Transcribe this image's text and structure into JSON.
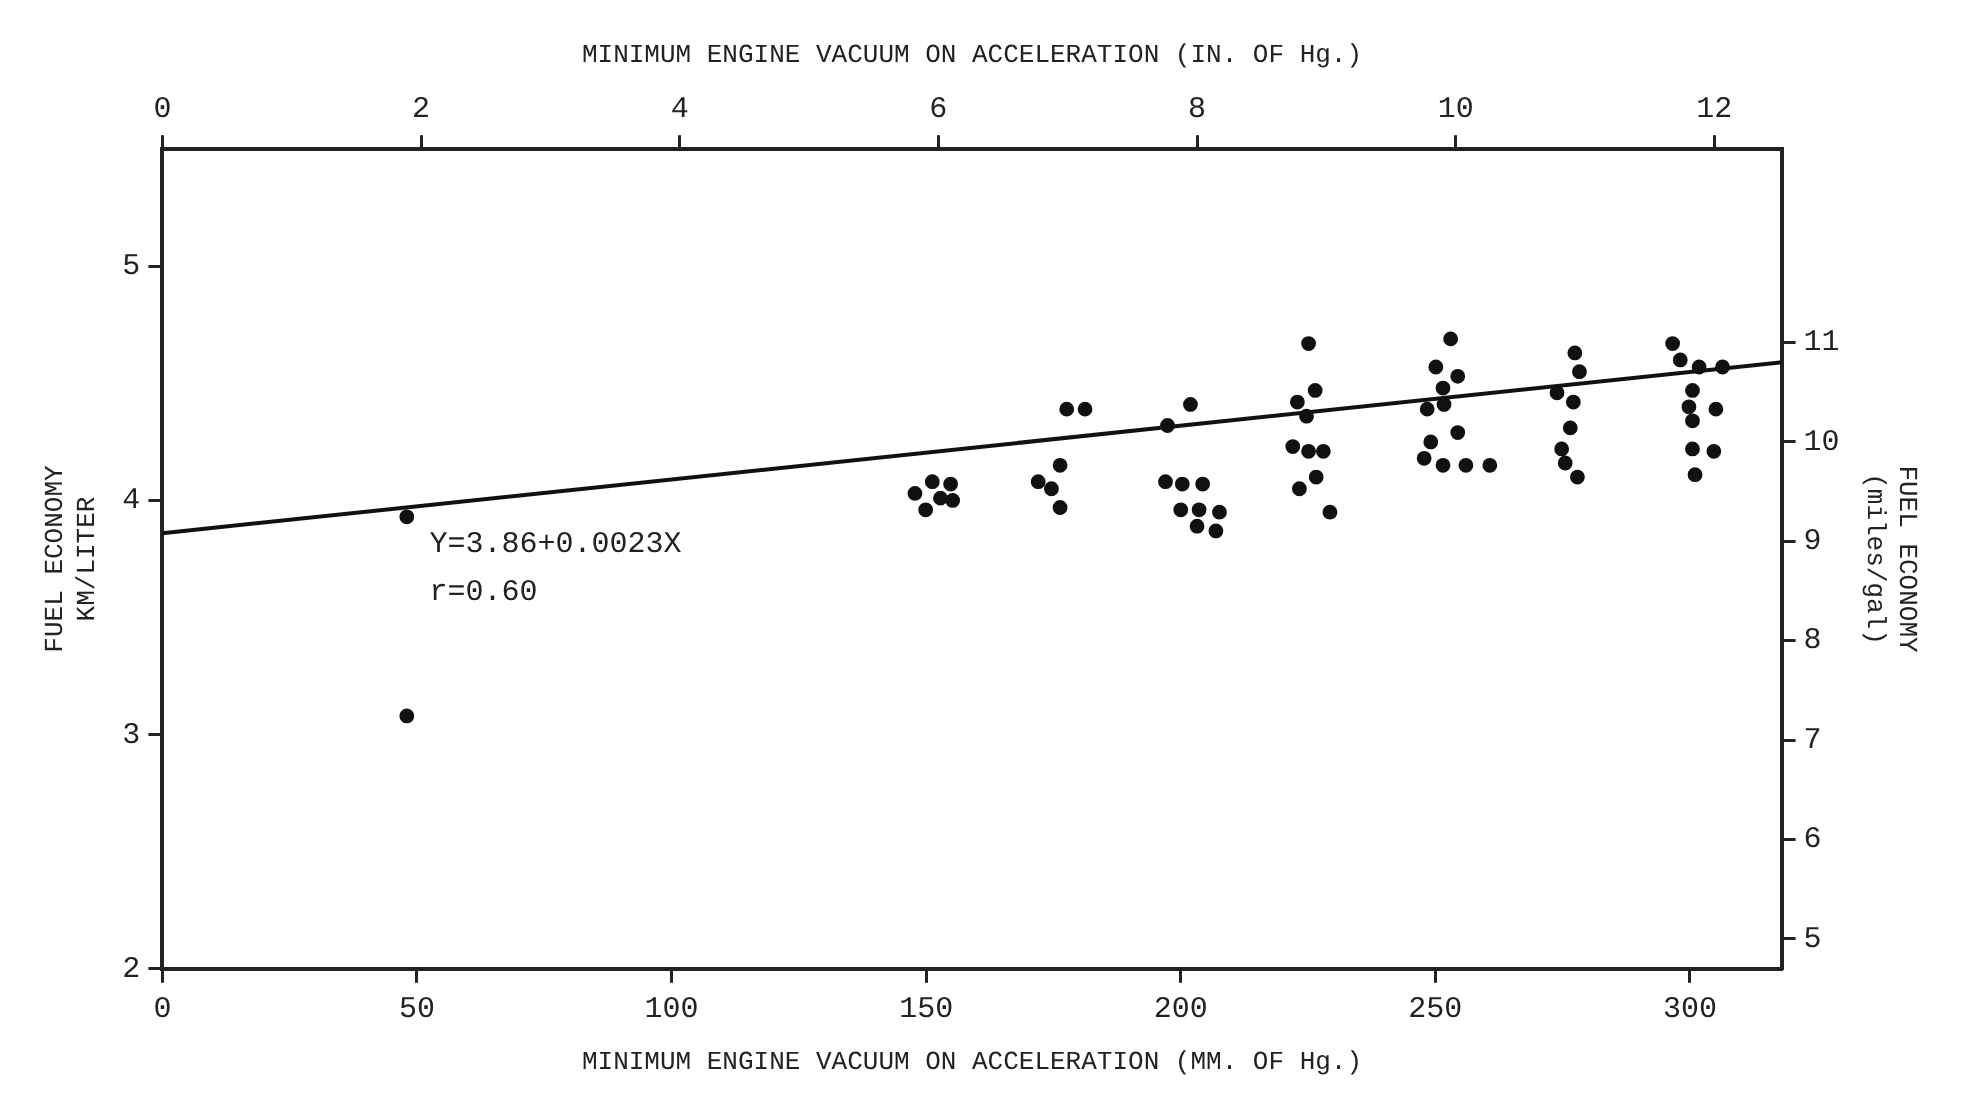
{
  "chart_data": {
    "type": "scatter",
    "xlabel": "MINIMUM ENGINE VACUUM ON ACCELERATION (MM. OF Hg.)",
    "x2label": "MINIMUM ENGINE VACUUM ON ACCELERATION (IN. OF Hg.)",
    "ylabel": "FUEL ECONOMY\nKM/LITER",
    "y2label": "FUEL ECONOMY\n(miles/gal)",
    "xlim": [
      0,
      318
    ],
    "xticks": [
      0,
      50,
      100,
      150,
      200,
      250,
      300
    ],
    "x2lim": [
      0,
      12.52
    ],
    "x2ticks": [
      0,
      2,
      4,
      6,
      8,
      10,
      12
    ],
    "ylim": [
      2,
      5.5
    ],
    "yticks": [
      2,
      3,
      4,
      5
    ],
    "y2lim": [
      4.7,
      12.94
    ],
    "y2ticks": [
      5,
      6,
      7,
      8,
      9,
      10,
      11
    ],
    "grid": false,
    "legend": false,
    "marker": "circle",
    "annotations": [
      "Y=3.86+0.0023X",
      "r=0.60"
    ],
    "series": [
      {
        "color": "#111111",
        "x": [
          48,
          48,
          147.8,
          151.2,
          154.8,
          149.9,
          152.8,
          155.2,
          176.3,
          172,
          174.6,
          176.3,
          177.6,
          181.2,
          197.4,
          201.9,
          197,
          200.3,
          204.3,
          200,
          203.6,
          207.6,
          203.2,
          206.9,
          225.1,
          222.9,
          226.4,
          224.7,
          222,
          225.1,
          228,
          223.3,
          226.6,
          229.3,
          253,
          250.1,
          254.4,
          251.5,
          248.4,
          251.7,
          249.1,
          254.4,
          247.8,
          251.5,
          256,
          260.7,
          277.4,
          278.3,
          273.9,
          277.1,
          276.5,
          274.8,
          275.5,
          277.9,
          296.6,
          298.1,
          301.8,
          306.4,
          300.5,
          299.8,
          305.1,
          300.5,
          300.5,
          304.7,
          301
        ],
        "values": [
          3.93,
          3.08,
          4.03,
          4.08,
          4.07,
          3.96,
          4.01,
          4.0,
          4.15,
          4.08,
          4.05,
          3.97,
          4.39,
          4.39,
          4.32,
          4.41,
          4.08,
          4.07,
          4.07,
          3.96,
          3.96,
          3.95,
          3.89,
          3.87,
          4.67,
          4.42,
          4.47,
          4.36,
          4.23,
          4.21,
          4.21,
          4.05,
          4.1,
          3.95,
          4.69,
          4.57,
          4.53,
          4.48,
          4.39,
          4.41,
          4.25,
          4.29,
          4.18,
          4.15,
          4.15,
          4.15,
          4.63,
          4.55,
          4.46,
          4.42,
          4.31,
          4.22,
          4.16,
          4.1,
          4.67,
          4.6,
          4.57,
          4.57,
          4.47,
          4.4,
          4.39,
          4.34,
          4.22,
          4.21,
          4.11
        ]
      },
      {
        "type": "line",
        "color": "#111111",
        "marker": "none",
        "line_style": "solid",
        "x": [
          0,
          318
        ],
        "values": [
          3.86,
          4.59
        ]
      }
    ]
  }
}
